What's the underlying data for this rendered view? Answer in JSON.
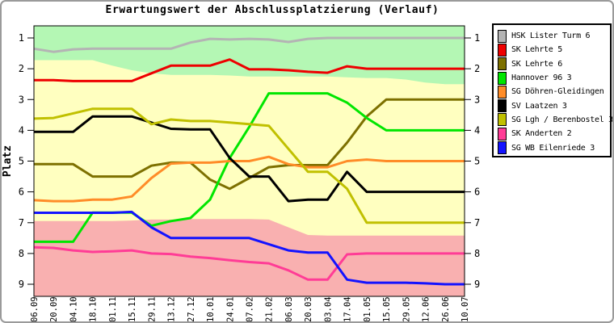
{
  "chart_data": {
    "type": "line",
    "title": "Erwartungswert der Abschlussplatzierung (Verlauf)",
    "ylabel": "Platz",
    "y_axis_inverted": true,
    "y_ticks": [
      1,
      2,
      3,
      4,
      5,
      6,
      7,
      8,
      9
    ],
    "ylim": [
      0.6,
      9.4
    ],
    "grid": false,
    "legend_position": "top-right",
    "x_labels": [
      "06.09",
      "20.09",
      "04.10",
      "18.10",
      "01.11",
      "15.11",
      "29.11",
      "13.12",
      "27.12",
      "10.01",
      "24.01",
      "07.02",
      "21.02",
      "06.03",
      "20.03",
      "03.04",
      "17.04",
      "01.05",
      "15.05",
      "29.05",
      "12.06",
      "26.06",
      "10.07"
    ],
    "series": [
      {
        "name": "HSK Lister Turm 6",
        "color": "#B4B4B4",
        "values": [
          1.35,
          1.45,
          1.37,
          1.35,
          1.35,
          1.35,
          1.35,
          1.35,
          1.15,
          1.03,
          1.05,
          1.03,
          1.05,
          1.13,
          1.03,
          1.0,
          1.0,
          1.0,
          1.0,
          1.0,
          1.0,
          1.0,
          1.0
        ]
      },
      {
        "name": "SK Lehrte 5",
        "color": "#EE0000",
        "values": [
          2.37,
          2.37,
          2.4,
          2.4,
          2.4,
          2.4,
          2.15,
          1.9,
          1.9,
          1.9,
          1.7,
          2.02,
          2.02,
          2.05,
          2.1,
          2.13,
          1.92,
          2.0,
          2.0,
          2.0,
          2.0,
          2.0,
          2.0
        ]
      },
      {
        "name": "SK Lehrte 6",
        "color": "#7D7000",
        "values": [
          5.1,
          5.1,
          5.1,
          5.5,
          5.5,
          5.5,
          5.15,
          5.05,
          5.05,
          5.6,
          5.9,
          5.55,
          5.2,
          5.13,
          5.13,
          5.13,
          4.4,
          3.55,
          3.0,
          3.0,
          3.0,
          3.0,
          3.0
        ]
      },
      {
        "name": "Hannover 96 3",
        "color": "#00E600",
        "values": [
          7.62,
          7.62,
          7.62,
          6.67,
          6.67,
          6.67,
          7.1,
          6.95,
          6.85,
          6.25,
          4.9,
          3.89,
          2.8,
          2.8,
          2.8,
          2.8,
          3.1,
          3.6,
          4.0,
          4.0,
          4.0,
          4.0,
          4.0
        ]
      },
      {
        "name": "SG Döhren-Gleidingen",
        "color": "#FF8C28",
        "values": [
          6.27,
          6.3,
          6.3,
          6.25,
          6.25,
          6.15,
          5.55,
          5.08,
          5.05,
          5.05,
          5.0,
          5.0,
          4.86,
          5.1,
          5.2,
          5.2,
          5.0,
          4.95,
          5.0,
          5.0,
          5.0,
          5.0,
          5.0
        ]
      },
      {
        "name": "SV Laatzen 3",
        "color": "#000000",
        "values": [
          4.05,
          4.05,
          4.05,
          3.55,
          3.55,
          3.55,
          3.75,
          3.95,
          3.97,
          3.97,
          4.9,
          5.5,
          5.5,
          6.3,
          6.25,
          6.25,
          5.35,
          6.0,
          6.0,
          6.0,
          6.0,
          6.0,
          6.0
        ]
      },
      {
        "name": "SG Lgh / Berenbostel 3",
        "color": "#C0C000",
        "values": [
          3.62,
          3.6,
          3.45,
          3.3,
          3.3,
          3.3,
          3.8,
          3.65,
          3.7,
          3.7,
          3.75,
          3.8,
          3.85,
          4.6,
          5.35,
          5.35,
          5.9,
          7.0,
          7.0,
          7.0,
          7.0,
          7.0,
          7.0
        ]
      },
      {
        "name": "SK Anderten 2",
        "color": "#FF3C96",
        "values": [
          7.8,
          7.82,
          7.9,
          7.95,
          7.93,
          7.9,
          8.0,
          8.02,
          8.1,
          8.15,
          8.22,
          8.28,
          8.32,
          8.55,
          8.85,
          8.85,
          8.03,
          8.0,
          8.0,
          8.0,
          8.0,
          8.0,
          8.0
        ]
      },
      {
        "name": "SG WB Eilenriede 3",
        "color": "#1313FF",
        "values": [
          6.68,
          6.68,
          6.68,
          6.68,
          6.68,
          6.65,
          7.15,
          7.5,
          7.5,
          7.5,
          7.5,
          7.5,
          7.7,
          7.9,
          7.97,
          7.97,
          8.85,
          8.95,
          8.95,
          8.95,
          8.97,
          9.0,
          9.0
        ]
      }
    ],
    "zones": {
      "top_green": {
        "color": "#B4F7B4",
        "bottom": [
          1.72,
          1.72,
          1.72,
          1.72,
          1.9,
          2.05,
          2.15,
          2.2,
          2.2,
          2.2,
          2.22,
          2.25,
          2.25,
          2.25,
          2.25,
          2.25,
          2.28,
          2.3,
          2.3,
          2.35,
          2.45,
          2.5,
          2.5
        ]
      },
      "middle_yellow": {
        "color": "#FFFFC0"
      },
      "bottom_pink": {
        "color": "#F9B0B0",
        "top": [
          6.95,
          6.95,
          6.95,
          6.95,
          6.95,
          6.93,
          6.9,
          6.9,
          6.88,
          6.88,
          6.88,
          6.88,
          6.9,
          7.15,
          7.4,
          7.42,
          7.42,
          7.42,
          7.42,
          7.42,
          7.42,
          7.42,
          7.42
        ]
      }
    }
  }
}
